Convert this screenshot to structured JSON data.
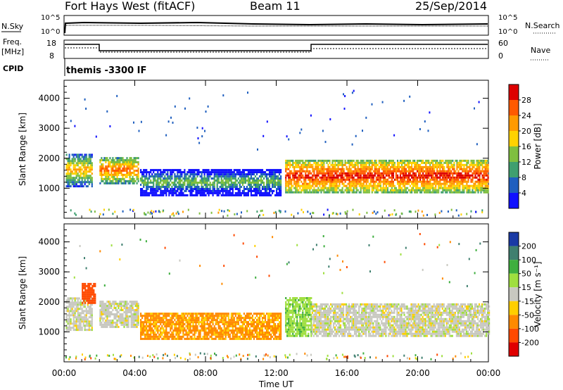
{
  "header": {
    "station": "Fort Hays West (fitACF)",
    "beam": "Beam 11",
    "date": "25/Sep/2014"
  },
  "summary_panel": {
    "nsky_label": "N.Sky",
    "nsearch_label": "N.Search",
    "freq_label_top": "Freq.",
    "freq_label_unit": "[MHz]",
    "nave_label": "Nave",
    "cpid_label": "CPID",
    "cpid_text": "themis -3300 IF",
    "left_ticks_top": [
      "10^5",
      "10^0"
    ],
    "right_ticks_top": [
      "10^5",
      "10^0"
    ],
    "left_ticks_freq": [
      "18",
      "8"
    ],
    "right_ticks_nave": [
      "60",
      "0"
    ]
  },
  "colorbars": {
    "power": {
      "label": "Power [dB]",
      "ticks": [
        "28",
        "24",
        "20",
        "16",
        "12",
        "8",
        "4"
      ],
      "colors": [
        "#dd0000",
        "#ff5a00",
        "#ff9a00",
        "#ffd200",
        "#7fbf3f",
        "#3f9f6f",
        "#1f5fbf",
        "#1010ff"
      ]
    },
    "velocity": {
      "label": "Velocity [m s⁻¹]",
      "ticks": [
        "200",
        "100",
        "50",
        "15",
        "-15",
        "-50",
        "-100",
        "-200"
      ],
      "colors": [
        "#1a3aa5",
        "#3f7f6f",
        "#3faf3f",
        "#9fdf3f",
        "#c8c8c0",
        "#ffcf00",
        "#ff8a00",
        "#ff4a00",
        "#e00000"
      ]
    }
  },
  "chart_data": [
    {
      "type": "heatmap",
      "panel": "power",
      "ylabel": "Slant Range [km]",
      "y_ticks": [
        "1000",
        "2000",
        "3000",
        "4000"
      ],
      "ylim": [
        0,
        4600
      ],
      "xlim": [
        0,
        24
      ],
      "x_ticks": [
        "00:00",
        "04:00",
        "08:00",
        "12:00",
        "16:00",
        "20:00",
        "00:00"
      ],
      "colorbar": "Power [dB]",
      "regions": [
        {
          "t0": 0.1,
          "t1": 1.6,
          "r0": 1100,
          "r1": 2200,
          "value": 16
        },
        {
          "t0": 2.0,
          "t1": 4.2,
          "r0": 1200,
          "r1": 2100,
          "value": 20
        },
        {
          "t0": 4.3,
          "t1": 12.3,
          "r0": 800,
          "r1": 1700,
          "value": 8
        },
        {
          "t0": 12.5,
          "t1": 24.0,
          "r0": 900,
          "r1": 2000,
          "value": 24
        }
      ]
    },
    {
      "type": "heatmap",
      "panel": "velocity",
      "ylabel": "Slant Range [km]",
      "y_ticks": [
        "1000",
        "2000",
        "3000",
        "4000"
      ],
      "ylim": [
        0,
        4600
      ],
      "xlim": [
        0,
        24
      ],
      "x_ticks": [
        "00:00",
        "04:00",
        "08:00",
        "12:00",
        "16:00",
        "20:00",
        "00:00"
      ],
      "xlabel": "Time UT",
      "colorbar": "Velocity [m s⁻¹]",
      "regions": [
        {
          "t0": 0.1,
          "t1": 1.6,
          "r0": 1100,
          "r1": 2200,
          "value": 0
        },
        {
          "t0": 1.0,
          "t1": 1.8,
          "r0": 2000,
          "r1": 2700,
          "value": -150
        },
        {
          "t0": 2.0,
          "t1": 4.2,
          "r0": 1200,
          "r1": 2100,
          "value": 0
        },
        {
          "t0": 4.3,
          "t1": 12.3,
          "r0": 800,
          "r1": 1700,
          "value": -60
        },
        {
          "t0": 12.5,
          "t1": 14.0,
          "r0": 900,
          "r1": 2200,
          "value": 40
        },
        {
          "t0": 14.0,
          "t1": 24.0,
          "r0": 900,
          "r1": 2000,
          "value": 0
        }
      ]
    }
  ]
}
